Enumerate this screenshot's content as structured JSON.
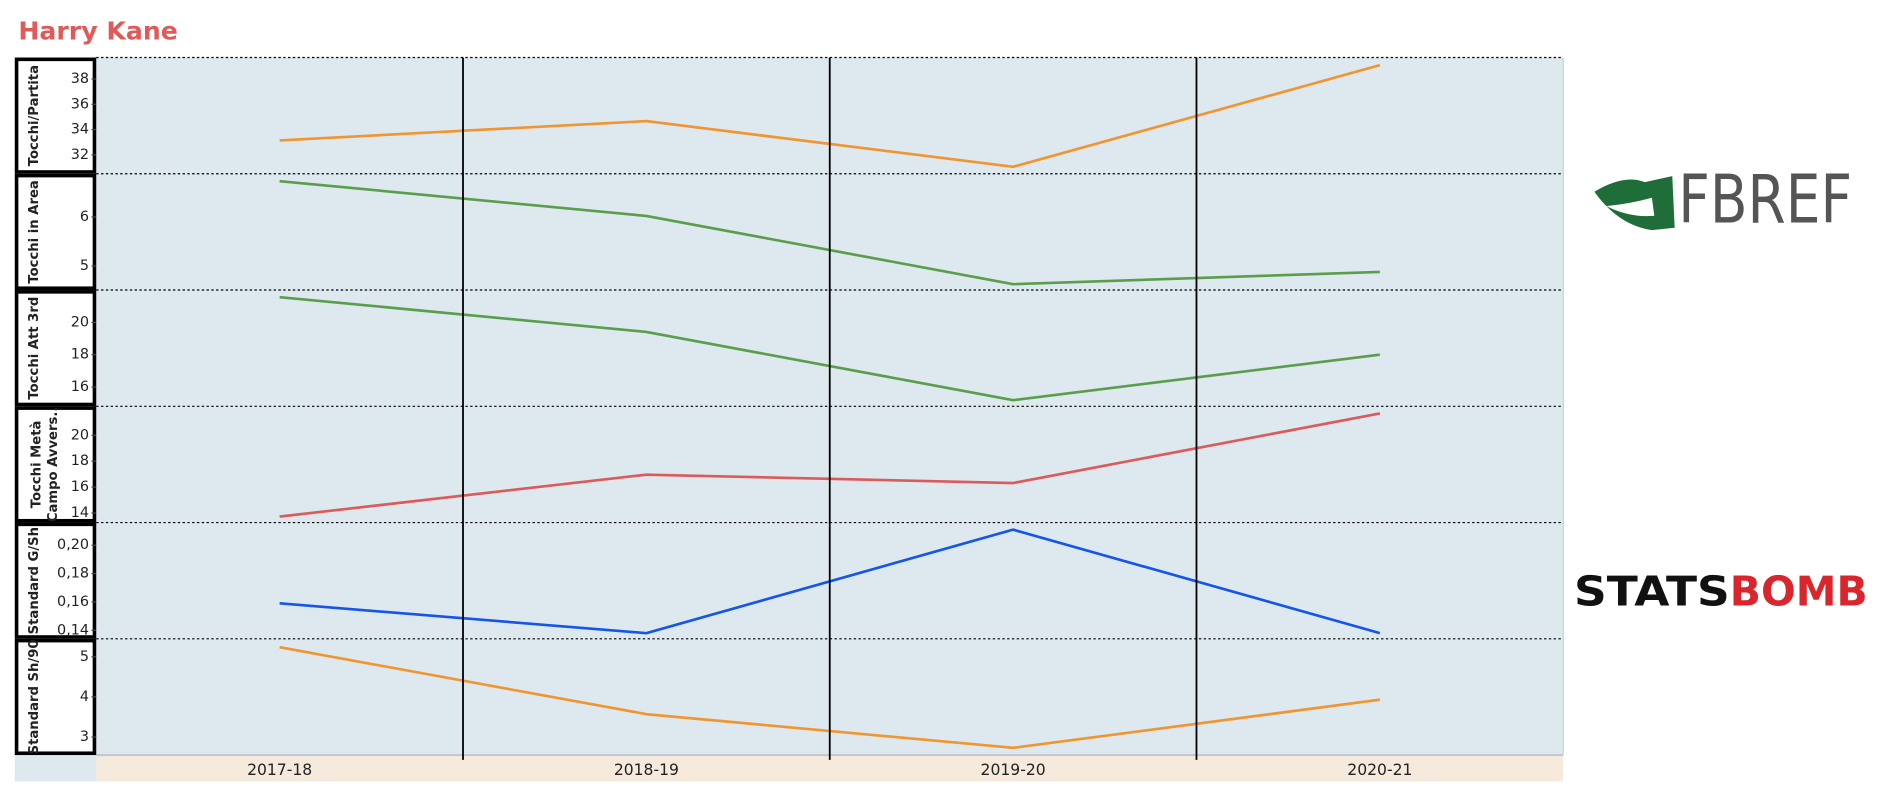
{
  "title": "Harry Kane",
  "logos": {
    "fbref": "FBREF",
    "statsbomb": [
      "STATS",
      "BOMB"
    ]
  },
  "chart_data": [
    {
      "type": "line",
      "ylabel": "Tocchi/Partita",
      "values": [
        33.14,
        34.67,
        31.05,
        39.1
      ],
      "color": "#f0952f",
      "ylim": [
        30.5,
        39.7
      ],
      "yticks": [
        32,
        34,
        36,
        38
      ]
    },
    {
      "type": "line",
      "ylabel": "Tocchi in Area",
      "values": [
        6.73,
        6.02,
        4.63,
        4.88
      ],
      "color": "#5a9e4b",
      "ylim": [
        4.51,
        6.88
      ],
      "yticks": [
        5,
        6
      ]
    },
    {
      "type": "line",
      "ylabel": "Tocchi Att 3rd",
      "values": [
        21.56,
        19.41,
        15.19,
        18.0
      ],
      "color": "#5a9e4b",
      "ylim": [
        14.81,
        22.0
      ],
      "yticks": [
        16,
        18,
        20
      ]
    },
    {
      "type": "line",
      "ylabel": [
        "Tocchi Metà",
        "Campo Avvers.."
      ],
      "values": [
        13.72,
        16.96,
        16.31,
        21.69
      ],
      "color": "#dc5a5a",
      "ylim": [
        13.26,
        22.24
      ],
      "yticks": [
        14,
        16,
        18,
        20
      ]
    },
    {
      "type": "line",
      "ylabel": "Standard G/Sh",
      "values": [
        0.159,
        0.138,
        0.211,
        0.138
      ],
      "color": "#1556e8",
      "ylim": [
        0.134,
        0.216
      ],
      "yticks": [
        {
          "value": 0.14,
          "label": "0,14"
        },
        {
          "value": 0.16,
          "label": "0,16"
        },
        {
          "value": 0.18,
          "label": "0,18"
        },
        {
          "value": 0.2,
          "label": "0,20"
        }
      ]
    },
    {
      "type": "line",
      "ylabel": "Standard Sh/90",
      "values": [
        5.24,
        3.57,
        2.73,
        3.93
      ],
      "color": "#f0952f",
      "ylim": [
        2.55,
        5.45
      ],
      "yticks": [
        3,
        4,
        5
      ],
      "categories": [
        "2017-18",
        "2018-19",
        "2019-20",
        "2020-21"
      ]
    }
  ]
}
